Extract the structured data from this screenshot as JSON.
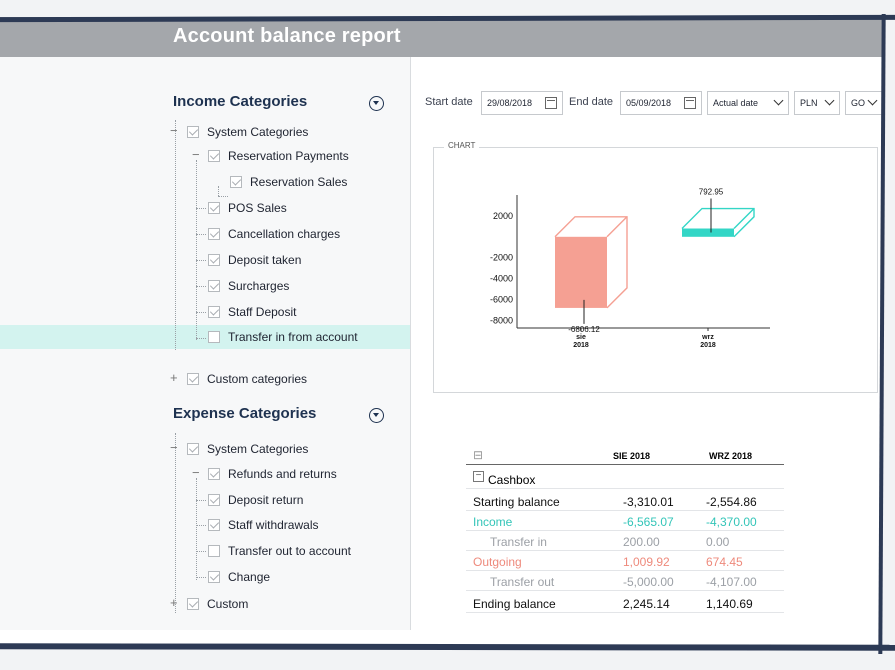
{
  "header": {
    "title": "Account balance report"
  },
  "income": {
    "title": "Income Categories",
    "items": [
      {
        "label": "System Categories",
        "checked": true
      },
      {
        "label": "Reservation Payments",
        "checked": true
      },
      {
        "label": "Reservation Sales",
        "checked": true
      },
      {
        "label": "POS Sales",
        "checked": true
      },
      {
        "label": "Cancellation charges",
        "checked": true
      },
      {
        "label": "Deposit taken",
        "checked": true
      },
      {
        "label": "Surcharges",
        "checked": true
      },
      {
        "label": "Staff Deposit",
        "checked": true
      },
      {
        "label": "Transfer in from account",
        "checked": false
      },
      {
        "label": "Custom categories",
        "checked": true
      }
    ]
  },
  "expense": {
    "title": "Expense Categories",
    "items": [
      {
        "label": "System Categories",
        "checked": true
      },
      {
        "label": "Refunds and returns",
        "checked": true
      },
      {
        "label": "Deposit return",
        "checked": true
      },
      {
        "label": "Staff withdrawals",
        "checked": true
      },
      {
        "label": "Transfer out to account",
        "checked": false
      },
      {
        "label": "Change",
        "checked": true
      },
      {
        "label": "Custom",
        "checked": true
      }
    ]
  },
  "filters": {
    "start_label": "Start date",
    "start_value": "29/08/2018",
    "end_label": "End date",
    "end_value": "05/09/2018",
    "date_type": "Actual date",
    "currency": "PLN",
    "go_label": "GO"
  },
  "chart": {
    "caption": "CHART"
  },
  "chart_data": {
    "type": "bar",
    "categories": [
      "sie\n2018",
      "wrz\n2018"
    ],
    "series": [
      {
        "values": [
          -6806.12,
          792.95
        ]
      }
    ],
    "data_labels": [
      "-6806.12",
      "792.95"
    ],
    "ytick_labels": [
      "2000",
      "-2000",
      "-4000",
      "-6000",
      "-8000"
    ],
    "colors": [
      "#f5a093",
      "#33d6c6"
    ],
    "ylim": [
      -10000,
      4000
    ]
  },
  "table": {
    "headers": [
      "SIE 2018",
      "WRZ 2018"
    ],
    "group": "Cashbox",
    "rows": [
      {
        "label": "Starting balance",
        "v1": "-3,310.01",
        "v2": "-2,554.86",
        "style": "dark"
      },
      {
        "label": "Income",
        "v1": "-6,565.07",
        "v2": "-4,370.00",
        "style": "teal"
      },
      {
        "label": "Transfer in",
        "v1": "200.00",
        "v2": "0.00",
        "style": "grey"
      },
      {
        "label": "Outgoing",
        "v1": "1,009.92",
        "v2": "674.45",
        "style": "salmon"
      },
      {
        "label": "Transfer out",
        "v1": "-5,000.00",
        "v2": "-4,107.00",
        "style": "grey"
      },
      {
        "label": "Ending balance",
        "v1": "2,245.14",
        "v2": "1,140.69",
        "style": "dark"
      }
    ]
  },
  "colors": {
    "header_bg": "#a4a7ab",
    "title_navy": "#1e3250",
    "highlight": "#d3f3ef",
    "teal": "#33c5b8",
    "salmon": "#ee8a7c"
  }
}
